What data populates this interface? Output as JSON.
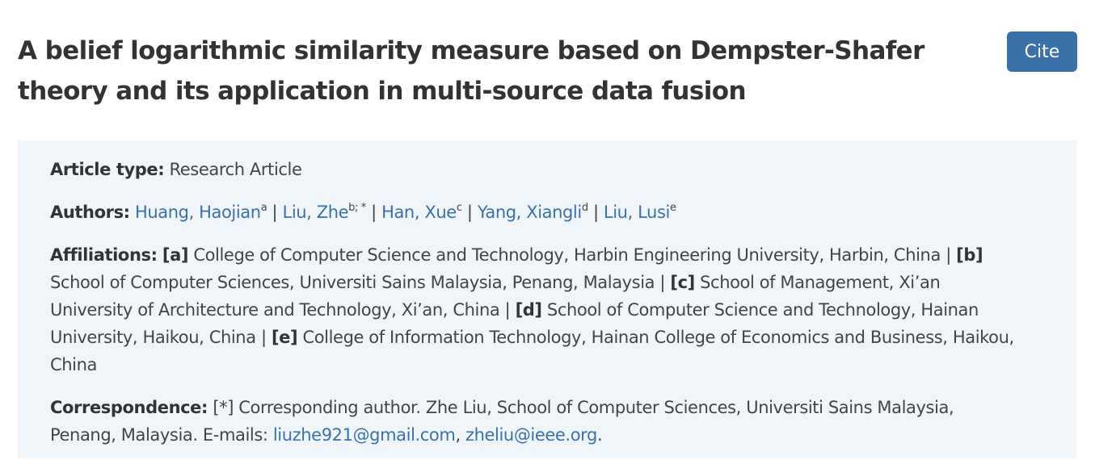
{
  "article": {
    "title": "A belief logarithmic similarity measure based on Dempster-Shafer theory and its application in multi-source data fusion",
    "cite_label": "Cite"
  },
  "meta": {
    "article_type_label": "Article type:",
    "article_type_value": "Research Article",
    "authors_label": "Authors:",
    "authors": [
      {
        "name": "Huang, Haojian",
        "sup": "a"
      },
      {
        "name": "Liu, Zhe",
        "sup": "b; *"
      },
      {
        "name": "Han, Xue",
        "sup": "c"
      },
      {
        "name": "Yang, Xiangli",
        "sup": "d"
      },
      {
        "name": "Liu, Lusi",
        "sup": "e"
      }
    ],
    "author_separator": "|",
    "affiliations_label": "Affiliations:",
    "affiliations": [
      {
        "mark": "[a]",
        "text": "College of Computer Science and Technology, Harbin Engineering University, Harbin, China"
      },
      {
        "mark": "[b]",
        "text": "School of Computer Sciences, Universiti Sains Malaysia, Penang, Malaysia"
      },
      {
        "mark": "[c]",
        "text": "School of Management, Xi’an University of Architecture and Technology, Xi’an, China"
      },
      {
        "mark": "[d]",
        "text": "School of Computer Science and Technology, Hainan University, Haikou, China"
      },
      {
        "mark": "[e]",
        "text": "College of Information Technology, Hainan College of Economics and Business, Haikou, China"
      }
    ],
    "correspondence_label": "Correspondence:",
    "correspondence_text": "[*] Corresponding author. Zhe Liu, School of Computer Sciences, Universiti Sains Malaysia, Penang, Malaysia. E-mails:",
    "emails": [
      "liuzhe921@gmail.com",
      "zheliu@ieee.org"
    ],
    "email_separator": ",",
    "end_period": "."
  }
}
